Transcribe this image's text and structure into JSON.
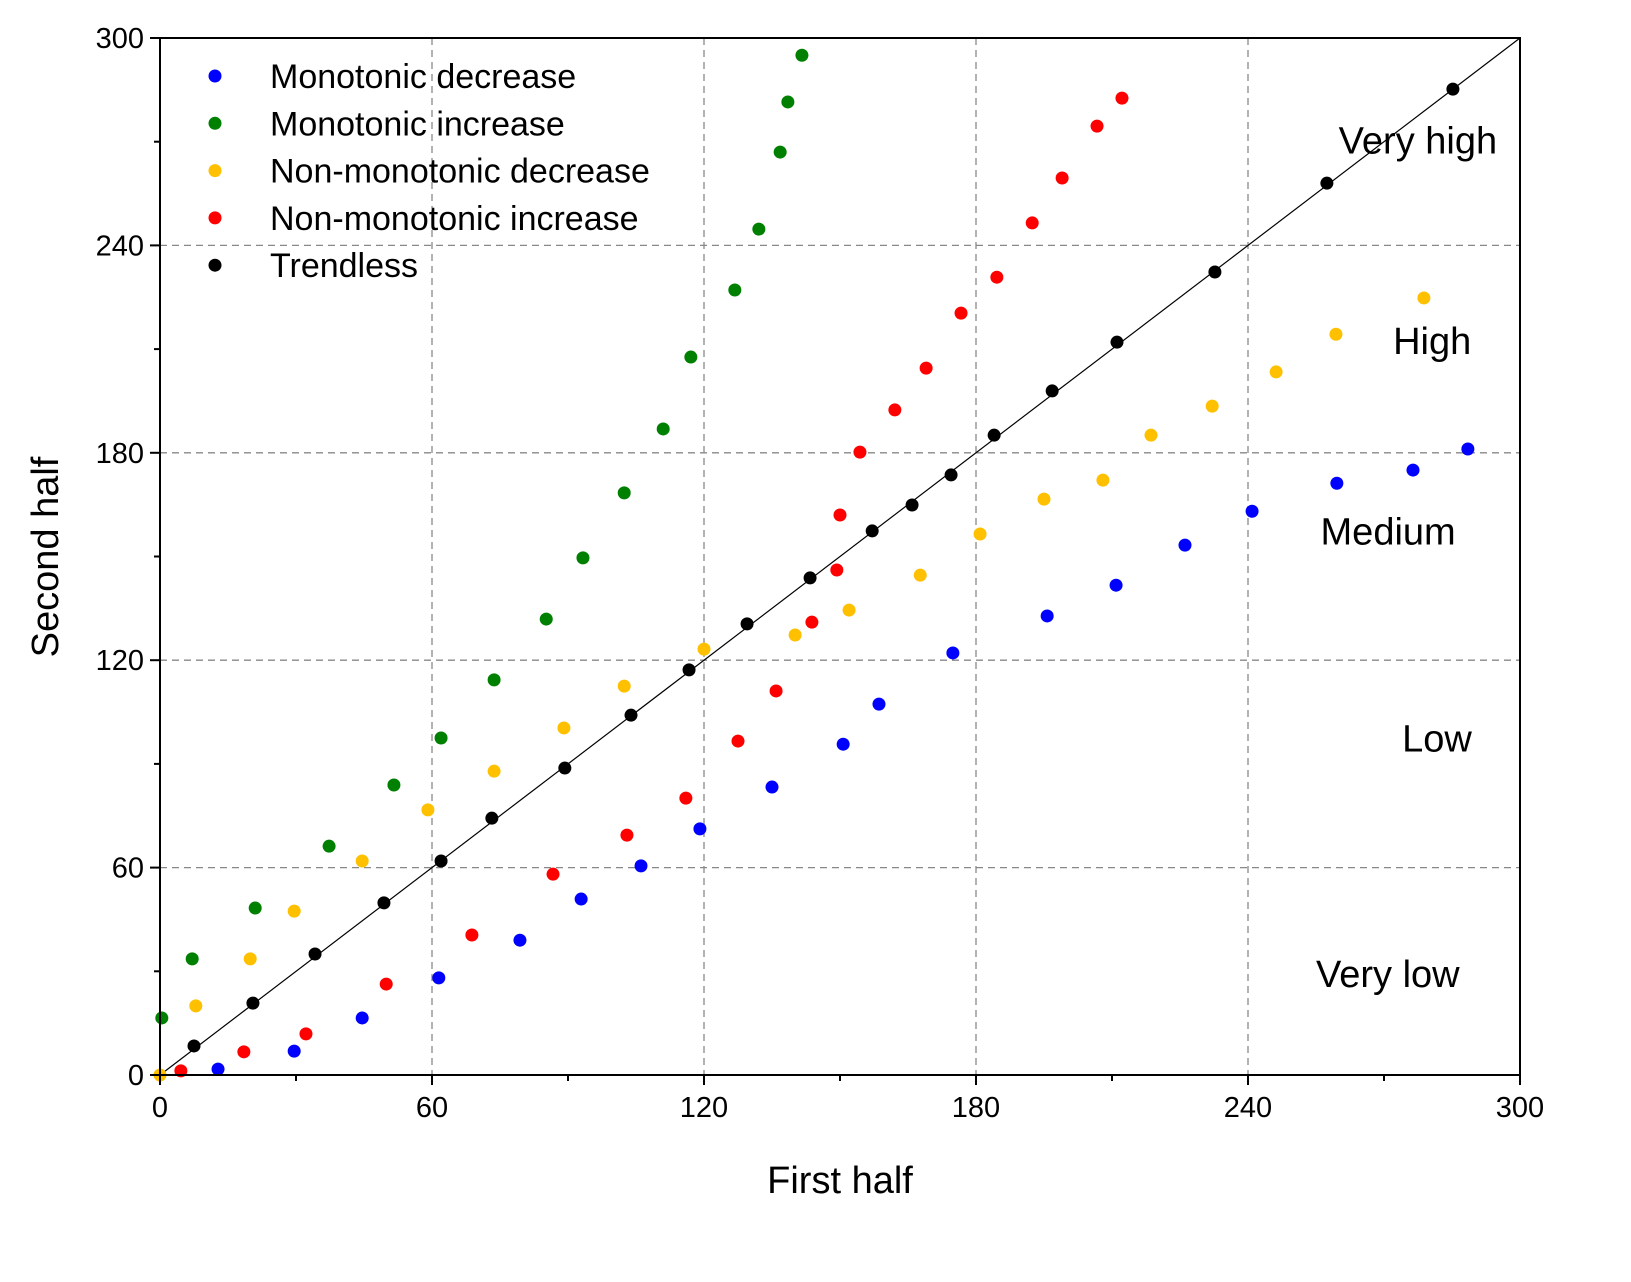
{
  "chart_data": {
    "type": "scatter",
    "title": "",
    "xlabel": "First half",
    "ylabel": "Second half",
    "xlim": [
      0,
      300
    ],
    "ylim": [
      0,
      300
    ],
    "xticks": [
      0,
      60,
      120,
      180,
      240,
      300
    ],
    "yticks": [
      0,
      60,
      120,
      180,
      240,
      300
    ],
    "grid": true,
    "legend_position": "top-left",
    "reference_line": {
      "type": "y=x",
      "color": "#000000"
    },
    "zone_labels": [
      {
        "text": "Very high",
        "x": 260,
        "y": 270
      },
      {
        "text": "High",
        "x": 272,
        "y": 212
      },
      {
        "text": "Medium",
        "x": 256,
        "y": 157
      },
      {
        "text": "Low",
        "x": 274,
        "y": 97
      },
      {
        "text": "Very low",
        "x": 255,
        "y": 29
      }
    ],
    "series": [
      {
        "name": "Monotonic decrease",
        "color": "#0000ff",
        "x": [
          12.8,
          29.6,
          44.6,
          61.5,
          79.4,
          92.9,
          106.1,
          119.1,
          135,
          150.7,
          158.6,
          174.9,
          195.7,
          210.9,
          226.1,
          240.9,
          259.6,
          276.4,
          288.5
        ],
        "y": [
          1.7,
          6.9,
          16.5,
          28.1,
          39,
          50.9,
          60.5,
          71.2,
          83.3,
          95.7,
          107.3,
          122.1,
          132.8,
          141.7,
          153.3,
          163.1,
          171.2,
          175,
          181.1
        ]
      },
      {
        "name": "Monotonic increase",
        "color": "#008000",
        "x": [
          0.4,
          7.1,
          21,
          37.3,
          51.6,
          62,
          73.7,
          85.2,
          93.3,
          102.4,
          111,
          117.1,
          126.8,
          132.1,
          136.8,
          138.5,
          141.6
        ],
        "y": [
          16.5,
          33.6,
          48.3,
          66.2,
          83.9,
          97.5,
          114.3,
          131.9,
          149.6,
          168.4,
          186.9,
          207.7,
          227.1,
          244.7,
          267,
          281.5,
          295
        ]
      },
      {
        "name": "Non-monotonic decrease",
        "color": "#ffc000",
        "x": [
          0,
          7.9,
          19.9,
          29.6,
          44.6,
          59.1,
          73.7,
          89.1,
          102.4,
          120,
          140.1,
          152,
          167.7,
          180.9,
          195,
          208,
          218.6,
          232.1,
          246.2,
          259.4,
          278.8
        ],
        "y": [
          0,
          20,
          33.6,
          47.4,
          61.9,
          76.7,
          87.9,
          100.4,
          112.5,
          123.2,
          127.3,
          134.5,
          144.6,
          156.5,
          166.6,
          172.1,
          185.1,
          193.5,
          203.4,
          214.3,
          224.8
        ]
      },
      {
        "name": "Non-monotonic increase",
        "color": "#ff0000",
        "x": [
          4.6,
          18.5,
          32.2,
          49.9,
          68.8,
          86.7,
          103,
          116,
          127.5,
          135.9,
          143.8,
          149.3,
          150,
          154.4,
          162.1,
          169,
          176.7,
          184.6,
          192.4,
          199,
          206.7,
          212.2
        ],
        "y": [
          1.2,
          6.7,
          11.9,
          26.3,
          40.5,
          58.1,
          69.4,
          80.1,
          96.6,
          111.1,
          131,
          146.1,
          162,
          180.2,
          192.4,
          204.5,
          220.4,
          230.8,
          246.5,
          259.5,
          274.5,
          282.6
        ]
      },
      {
        "name": "Trendless",
        "color": "#000000",
        "x": [
          7.5,
          20.5,
          34.2,
          49.4,
          62,
          73.2,
          89.3,
          103.9,
          116.7,
          129.5,
          143.4,
          157.1,
          165.9,
          174.5,
          184,
          196.8,
          211.1,
          232.7,
          257.4,
          285.2
        ],
        "y": [
          8.4,
          20.8,
          35,
          49.8,
          61.9,
          74.3,
          88.8,
          104.1,
          117.2,
          130.5,
          143.8,
          157.4,
          164.9,
          173.6,
          185.1,
          197.9,
          212,
          232.3,
          258,
          285.2
        ]
      }
    ]
  }
}
